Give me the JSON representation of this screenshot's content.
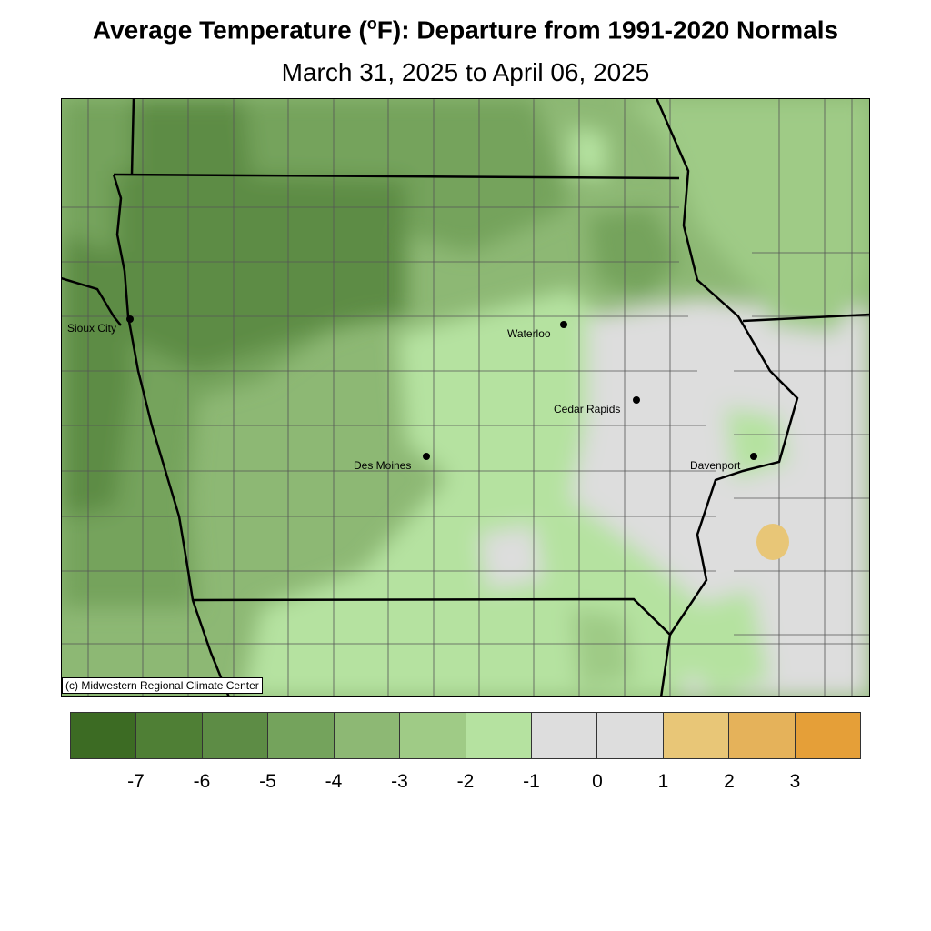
{
  "title": {
    "prefix": "Average Temperature (",
    "degree": "o",
    "suffix": "F): Departure from 1991-2020 Normals"
  },
  "subtitle": "March 31, 2025 to April 06, 2025",
  "credit": "(c) Midwestern Regional Climate Center",
  "cities": [
    {
      "name": "Sioux City",
      "label_side": "left"
    },
    {
      "name": "Waterloo",
      "label_side": "left"
    },
    {
      "name": "Cedar Rapids",
      "label_side": "left"
    },
    {
      "name": "Des Moines",
      "label_side": "left"
    },
    {
      "name": "Davenport",
      "label_side": "left"
    }
  ],
  "legend": {
    "colors": [
      "#3c6b23",
      "#4f7f35",
      "#5d8c45",
      "#74a35c",
      "#8db874",
      "#9fcb86",
      "#b5e2a0",
      "#dddddd",
      "#dddddd",
      "#e8c677",
      "#e5b25a",
      "#e59f38"
    ],
    "ticks": [
      "-7",
      "-6",
      "-5",
      "-4",
      "-3",
      "-2",
      "-1",
      "0",
      "1",
      "2",
      "3"
    ]
  }
}
